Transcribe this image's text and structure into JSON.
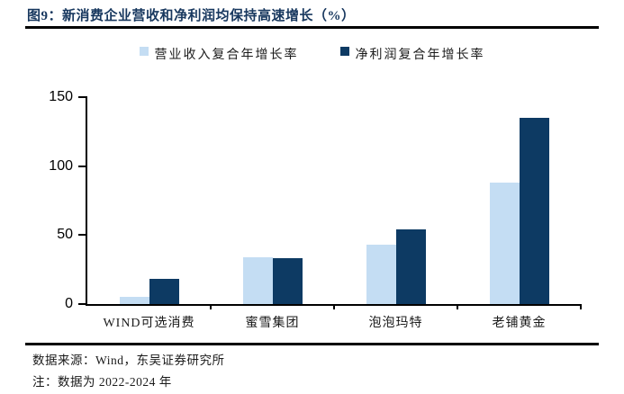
{
  "figure": {
    "title": "图9：新消费企业营收和净利润均保持高速增长（%）",
    "source_line": "数据来源：Wind，东吴证券研究所",
    "note_line": "注：数据为 2022-2024 年"
  },
  "chart_data": {
    "type": "bar",
    "title": "新消费企业营收和净利润均保持高速增长（%）",
    "categories": [
      "WIND可选消费",
      "蜜雪集团",
      "泡泡玛特",
      "老铺黄金"
    ],
    "series": [
      {
        "name": "营业收入复合年增长率",
        "color": "#C4DDF3",
        "values": [
          5,
          34,
          43,
          88
        ]
      },
      {
        "name": "净利润复合年增长率",
        "color": "#0D3A63",
        "values": [
          18,
          33,
          54,
          135
        ]
      }
    ],
    "xlabel": "",
    "ylabel": "",
    "ylim": [
      0,
      150
    ],
    "yticks": [
      0,
      50,
      100,
      150
    ],
    "grid": false,
    "legend_position": "top"
  },
  "colors": {
    "title_navy": "#17375E",
    "rule_black": "#000000",
    "axis_black": "#000000",
    "series_light": "#C4DDF3",
    "series_dark": "#0D3A63"
  }
}
